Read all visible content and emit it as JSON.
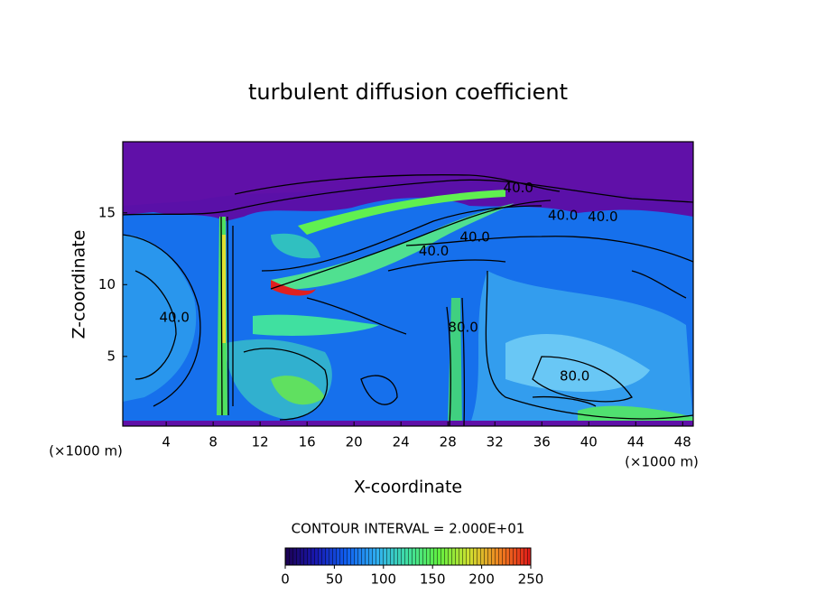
{
  "chart_data": {
    "type": "contour",
    "title": "turbulent diffusion coefficient",
    "xlabel": "X-coordinate",
    "ylabel": "Z-coordinate",
    "unit_label": "(×1000 m)",
    "xlim": [
      0.3,
      48.9
    ],
    "ylim": [
      0.15,
      19.95
    ],
    "xticks": [
      4,
      8,
      12,
      16,
      20,
      24,
      28,
      32,
      36,
      40,
      44,
      48
    ],
    "yticks": [
      5,
      10,
      15
    ],
    "contour_interval": "CONTOUR INTERVAL = 2.000E+01",
    "contour_labels": [
      {
        "value": 40,
        "label": "40.0",
        "x": 41.2,
        "y": 14.7
      },
      {
        "value": 40,
        "label": "40.0",
        "x": 37.8,
        "y": 14.8
      },
      {
        "value": 40,
        "label": "40.0",
        "x": 34.0,
        "y": 16.7
      },
      {
        "value": 40,
        "label": "40.0",
        "x": 26.8,
        "y": 12.3
      },
      {
        "value": 40,
        "label": "40.0",
        "x": 30.3,
        "y": 13.3
      },
      {
        "value": 80,
        "label": "80.0",
        "x": 38.8,
        "y": 3.6
      },
      {
        "value": 80,
        "label": "80.0",
        "x": 29.3,
        "y": 7.0
      },
      {
        "value": 40,
        "label": "40.0",
        "x": 4.7,
        "y": 7.7
      }
    ],
    "colorbar": {
      "lim": [
        0,
        250
      ],
      "ticks": [
        0,
        50,
        100,
        150,
        200,
        250
      ],
      "colors": [
        "#1c0050",
        "#1818b0",
        "#1060f0",
        "#30b0f0",
        "#40e0a0",
        "#60f040",
        "#d0e030",
        "#f08020",
        "#e01818"
      ]
    }
  }
}
